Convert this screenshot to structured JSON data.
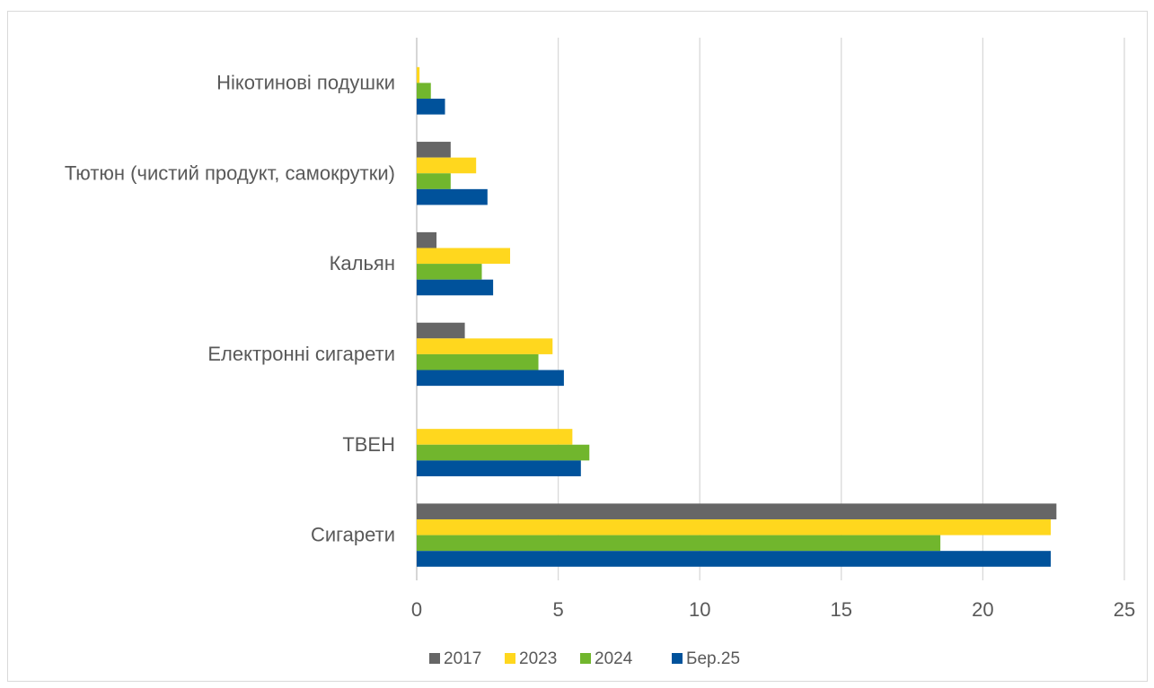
{
  "chart_data": {
    "type": "bar",
    "orientation": "horizontal",
    "categories": [
      "Нікотинові подушки",
      "Тютюн (чистий продукт, самокрутки)",
      "Кальян",
      "Електронні сигарети",
      "ТВЕН",
      "Сигарети"
    ],
    "series": [
      {
        "name": "2017",
        "color": "#666666",
        "values": [
          null,
          1.2,
          0.7,
          1.7,
          null,
          22.6
        ]
      },
      {
        "name": "2023",
        "color": "#FFD71E",
        "values": [
          0.1,
          2.1,
          3.3,
          4.8,
          5.5,
          22.4
        ]
      },
      {
        "name": "2024",
        "color": "#71B62D",
        "values": [
          0.5,
          1.2,
          2.3,
          4.3,
          6.1,
          18.5
        ]
      },
      {
        "name": "Бер.25",
        "color": "#00529B",
        "values": [
          1.0,
          2.5,
          2.7,
          5.2,
          5.8,
          22.4
        ]
      }
    ],
    "xlim": [
      0,
      25
    ],
    "xticks": [
      "0",
      "5",
      "10",
      "15",
      "20",
      "25"
    ],
    "grid": "vertical",
    "legend": "bottom"
  }
}
